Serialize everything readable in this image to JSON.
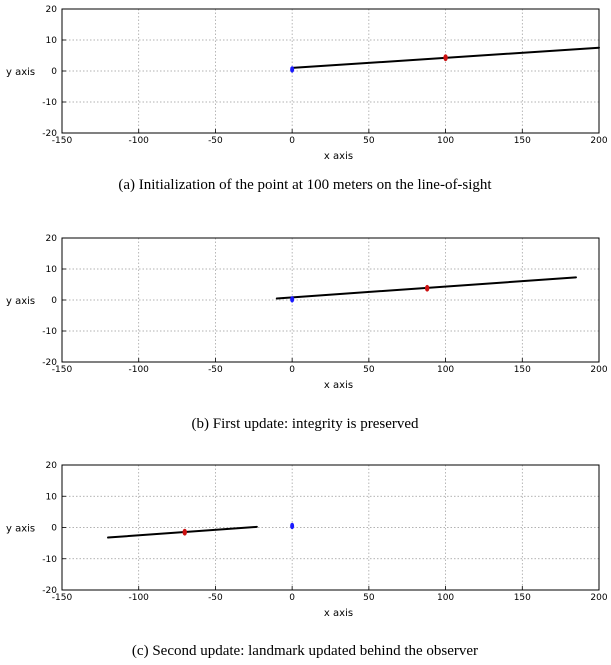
{
  "chart_data": [
    {
      "type": "scatter",
      "caption": "(a) Initialization of the point at 100 meters on the line-of-sight",
      "xlabel": "x axis",
      "ylabel": "y axis",
      "xlim": [
        -150,
        200
      ],
      "ylim": [
        -20,
        20
      ],
      "xticks": [
        -150,
        -100,
        -50,
        0,
        50,
        100,
        150,
        200
      ],
      "yticks": [
        20,
        10,
        0,
        -10,
        -20
      ],
      "grid": true,
      "colors": {
        "line": "#000000",
        "observer": "#1a1aff",
        "landmark": "#cc1111"
      },
      "series": [
        {
          "x": [
            0,
            200
          ],
          "y": [
            1,
            7.5
          ]
        },
        {
          "x": [
            0
          ],
          "y": [
            0.5
          ]
        },
        {
          "x": [
            100
          ],
          "y": [
            4.3
          ]
        }
      ]
    },
    {
      "type": "scatter",
      "caption": "(b) First update: integrity is preserved",
      "xlabel": "x axis",
      "ylabel": "y axis",
      "xlim": [
        -150,
        200
      ],
      "ylim": [
        -20,
        20
      ],
      "xticks": [
        -150,
        -100,
        -50,
        0,
        50,
        100,
        150,
        200
      ],
      "yticks": [
        20,
        10,
        0,
        -10,
        -20
      ],
      "grid": true,
      "colors": {
        "line": "#000000",
        "observer": "#1a1aff",
        "landmark": "#cc1111"
      },
      "series": [
        {
          "x": [
            -10,
            185
          ],
          "y": [
            0.5,
            7.3
          ]
        },
        {
          "x": [
            0
          ],
          "y": [
            0.2
          ]
        },
        {
          "x": [
            88
          ],
          "y": [
            3.8
          ]
        }
      ]
    },
    {
      "type": "scatter",
      "caption": "(c) Second update: landmark updated behind the observer",
      "xlabel": "x axis",
      "ylabel": "y axis",
      "xlim": [
        -150,
        200
      ],
      "ylim": [
        -20,
        20
      ],
      "xticks": [
        -150,
        -100,
        -50,
        0,
        50,
        100,
        150,
        200
      ],
      "yticks": [
        20,
        10,
        0,
        -10,
        -20
      ],
      "grid": true,
      "colors": {
        "line": "#000000",
        "observer": "#1a1aff",
        "landmark": "#cc1111"
      },
      "series": [
        {
          "x": [
            -120,
            -23
          ],
          "y": [
            -3.2,
            0.2
          ]
        },
        {
          "x": [
            0
          ],
          "y": [
            0.5
          ]
        },
        {
          "x": [
            -70
          ],
          "y": [
            -1.5
          ]
        }
      ]
    }
  ]
}
